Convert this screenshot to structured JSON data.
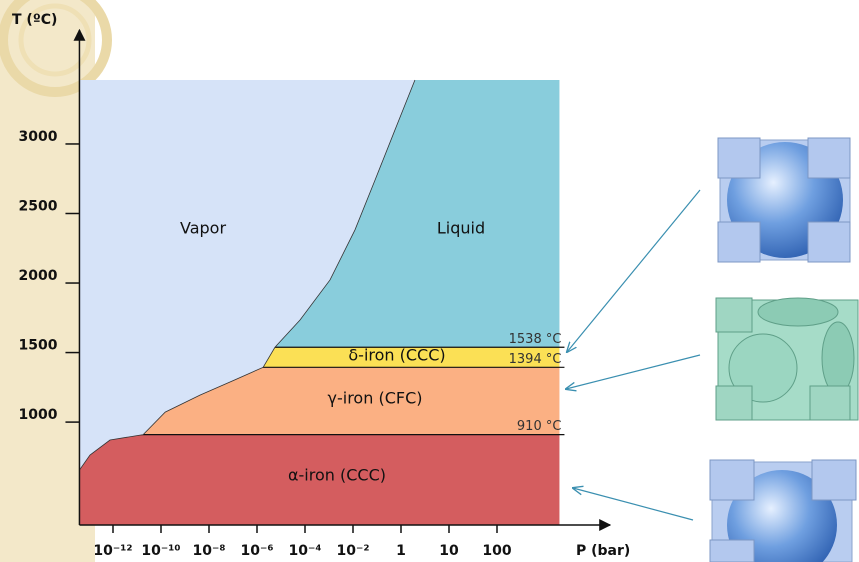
{
  "chart_data": {
    "type": "phase-diagram",
    "ylabel": "T (ºC)",
    "xlabel": "P (bar)",
    "xscale": "log",
    "xlim": [
      4e-14,
      2000
    ],
    "ylim": [
      260,
      3460
    ],
    "xticks": [
      {
        "value": 1e-12,
        "label": "10⁻¹²"
      },
      {
        "value": 1e-10,
        "label": "10⁻¹⁰"
      },
      {
        "value": 1e-08,
        "label": "10⁻⁸"
      },
      {
        "value": 1e-06,
        "label": "10⁻⁶"
      },
      {
        "value": 0.0001,
        "label": "10⁻⁴"
      },
      {
        "value": 0.01,
        "label": "10⁻²"
      },
      1,
      10,
      100
    ],
    "yticks": [
      1000,
      1500,
      2000,
      2500,
      3000
    ],
    "boundary": {
      "P": [
        4e-14,
        1.1e-13,
        7.5e-13,
        1.8e-11,
        1.5e-10,
        4.2e-09,
        7.5e-08,
        1.8e-06,
        5.6e-06,
        6.2e-05,
        0.0011,
        0.012,
        0.083,
        0.56,
        1.95
      ],
      "T": [
        655,
        763,
        871,
        910,
        1072,
        1194,
        1288,
        1394,
        1538,
        1734,
        2022,
        2381,
        2741,
        3101,
        3460
      ]
    },
    "transitions": [
      {
        "value": 910,
        "label": "910 °C"
      },
      {
        "value": 1394,
        "label": "1394 °C"
      },
      {
        "value": 1538,
        "label": "1538 °C"
      }
    ],
    "phases": [
      {
        "name": "Vapor",
        "color": "#d6e3f8"
      },
      {
        "name": "Liquid",
        "color": "#89cddc"
      },
      {
        "name": "δ-iron (CCC)",
        "color": "#fbe055"
      },
      {
        "name": "γ-iron (CFC)",
        "color": "#fbb083"
      },
      {
        "name": "α-iron (CCC)",
        "color": "#d45d5f"
      }
    ]
  }
}
